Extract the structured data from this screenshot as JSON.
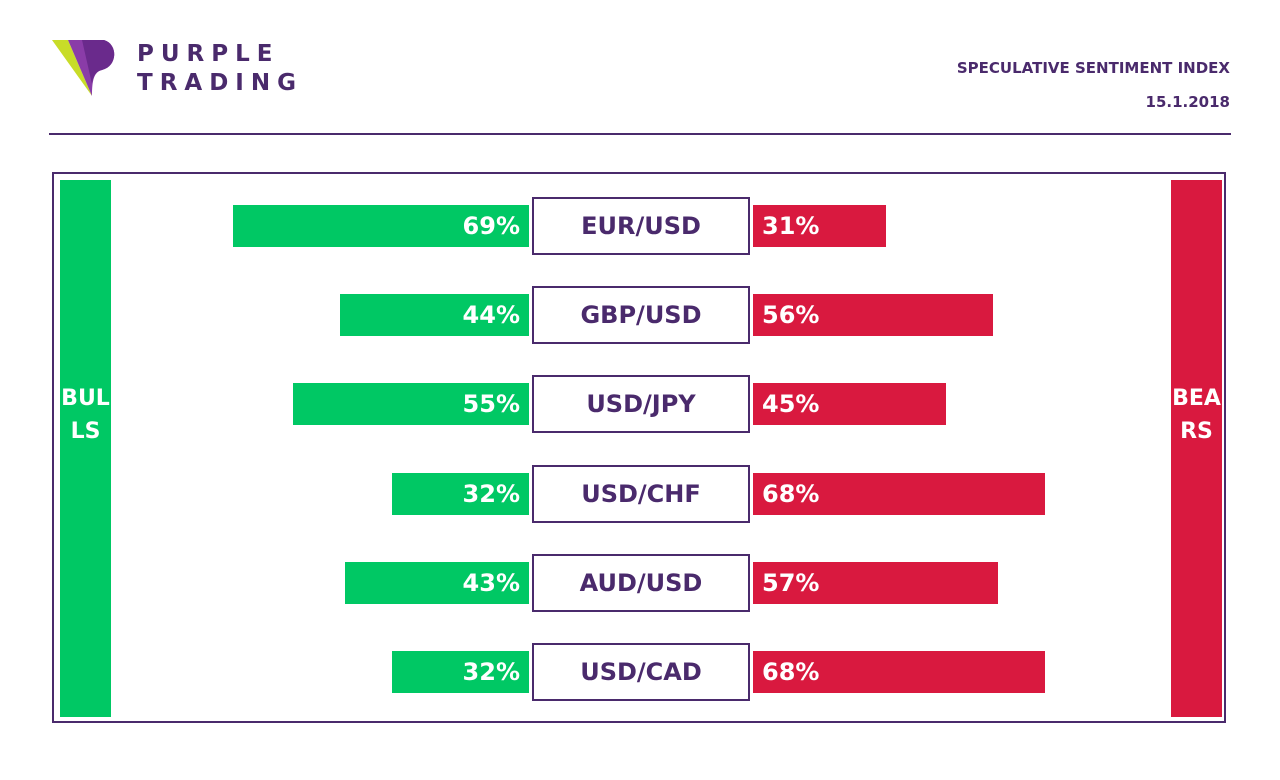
{
  "brand": {
    "line1": "PURPLE",
    "line2": "TRADING",
    "logo_icon": "purple-trading-logo-icon",
    "colors": {
      "purple": "#4a2a6c",
      "lime": "#c8dc28",
      "violet": "#8a3ca8"
    }
  },
  "header": {
    "title": "SPECULATIVE SENTIMENT INDEX",
    "date": "15.1.2018"
  },
  "sides": {
    "bulls_label": "BULLS",
    "bears_label": "BEARS",
    "bulls_color": "#00c864",
    "bears_color": "#d9193f"
  },
  "chart_data": {
    "type": "bar",
    "orientation": "horizontal-diverging",
    "categories": [
      "EUR/USD",
      "GBP/USD",
      "USD/JPY",
      "USD/CHF",
      "AUD/USD",
      "USD/CAD"
    ],
    "series": [
      {
        "name": "BULLS",
        "values": [
          69,
          44,
          55,
          32,
          43,
          32
        ]
      },
      {
        "name": "BEARS",
        "values": [
          31,
          56,
          45,
          68,
          57,
          68
        ]
      }
    ],
    "labels": {
      "bulls": [
        "69%",
        "44%",
        "55%",
        "32%",
        "43%",
        "32%"
      ],
      "bears": [
        "31%",
        "56%",
        "45%",
        "68%",
        "57%",
        "68%"
      ]
    },
    "unit": "%",
    "xlim": [
      0,
      100
    ]
  }
}
